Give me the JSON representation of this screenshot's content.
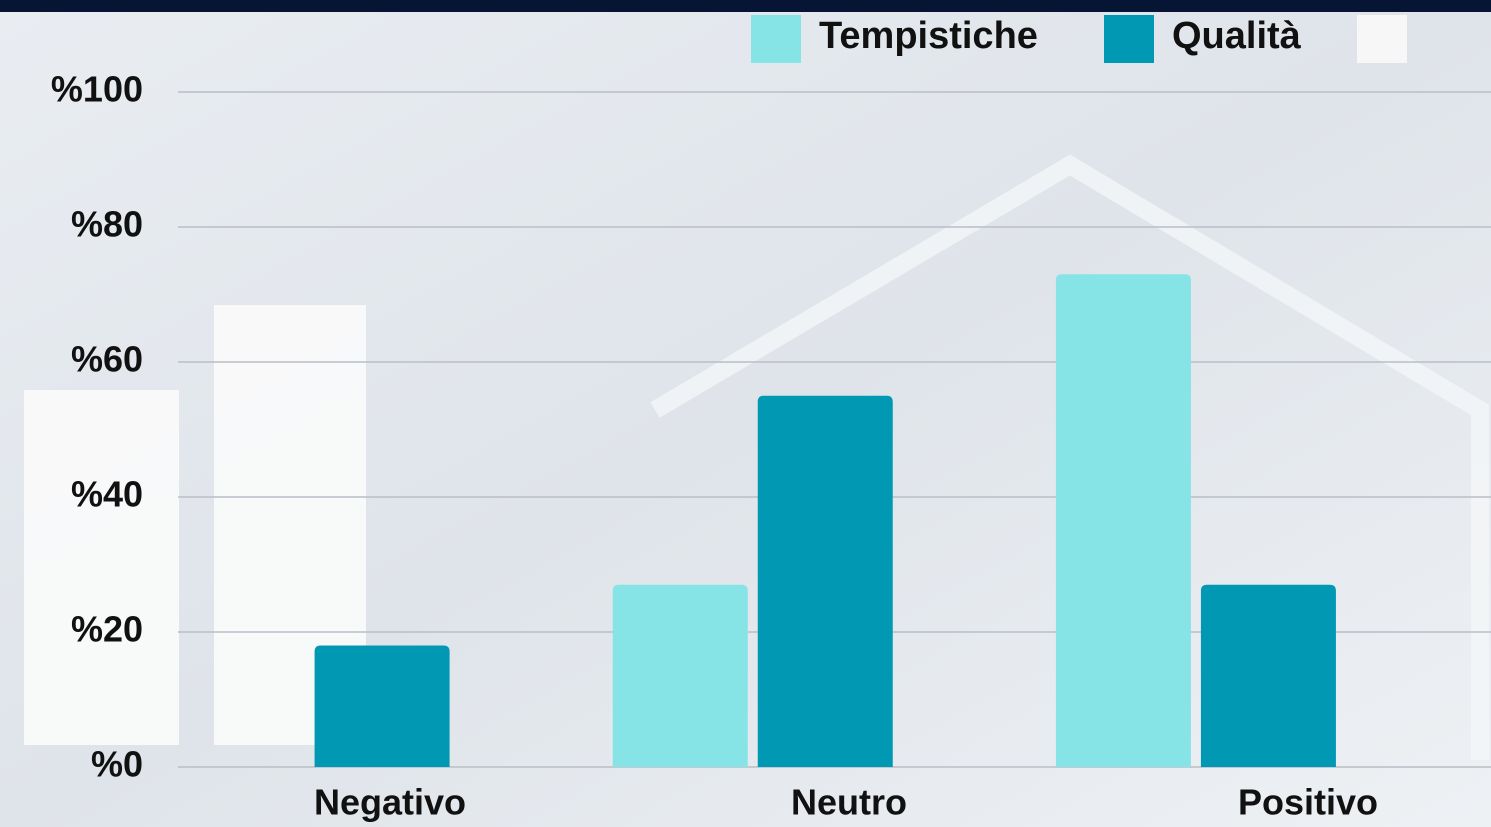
{
  "chart_data": {
    "type": "bar",
    "categories": [
      "Negativo",
      "Neutro",
      "Positivo"
    ],
    "series": [
      {
        "name": "Tempistiche",
        "color": "#86e3e6",
        "values": [
          null,
          27,
          73
        ]
      },
      {
        "name": "Qualità",
        "color": "#0098b3",
        "values": [
          18,
          55,
          27
        ]
      }
    ],
    "ylim": [
      0,
      100
    ],
    "yticks": [
      {
        "value": 0,
        "label": "%0"
      },
      {
        "value": 20,
        "label": "%20"
      },
      {
        "value": 40,
        "label": "%40"
      },
      {
        "value": 60,
        "label": "%60"
      },
      {
        "value": 80,
        "label": "%80"
      },
      {
        "value": 100,
        "label": "%100"
      }
    ],
    "grid": true
  }
}
